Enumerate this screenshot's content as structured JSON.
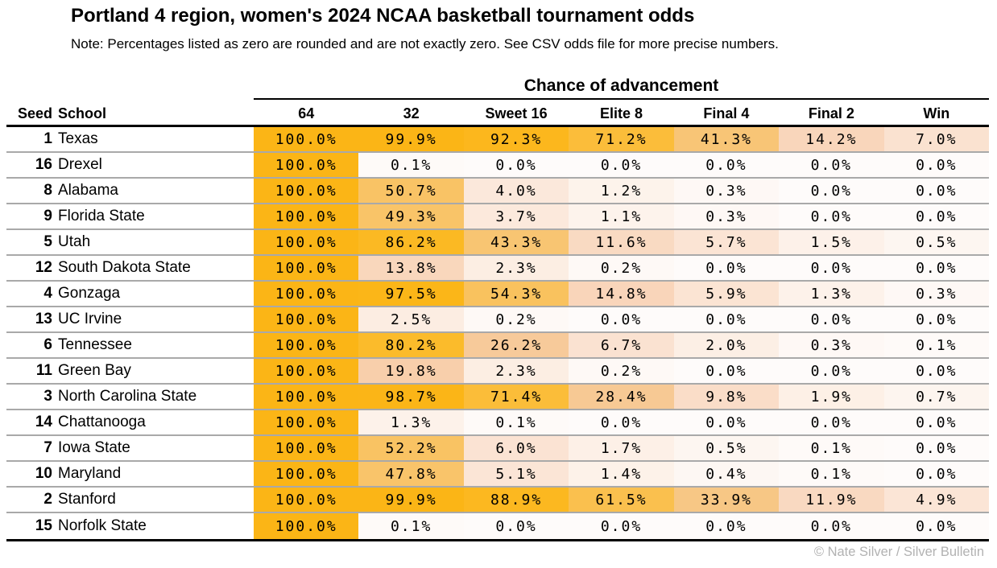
{
  "chart_data": {
    "type": "table",
    "title": "Portland 4 region, women's 2024 NCAA basketball tournament odds",
    "note": "Note: Percentages listed as zero are rounded and are not exactly zero. See CSV odds file for more precise numbers.",
    "group_header": "Chance of advancement",
    "seed_header": "Seed",
    "school_header": "School",
    "round_headers": [
      "64",
      "32",
      "Sweet 16",
      "Elite 8",
      "Final 4",
      "Final 2",
      "Win"
    ],
    "value_format": "percent_one_decimal",
    "rows": [
      {
        "seed": 1,
        "school": "Texas",
        "values": [
          100.0,
          99.9,
          92.3,
          71.2,
          41.3,
          14.2,
          7.0
        ]
      },
      {
        "seed": 16,
        "school": "Drexel",
        "values": [
          100.0,
          0.1,
          0.0,
          0.0,
          0.0,
          0.0,
          0.0
        ]
      },
      {
        "seed": 8,
        "school": "Alabama",
        "values": [
          100.0,
          50.7,
          4.0,
          1.2,
          0.3,
          0.0,
          0.0
        ]
      },
      {
        "seed": 9,
        "school": "Florida State",
        "values": [
          100.0,
          49.3,
          3.7,
          1.1,
          0.3,
          0.0,
          0.0
        ]
      },
      {
        "seed": 5,
        "school": "Utah",
        "values": [
          100.0,
          86.2,
          43.3,
          11.6,
          5.7,
          1.5,
          0.5
        ]
      },
      {
        "seed": 12,
        "school": "South Dakota State",
        "values": [
          100.0,
          13.8,
          2.3,
          0.2,
          0.0,
          0.0,
          0.0
        ]
      },
      {
        "seed": 4,
        "school": "Gonzaga",
        "values": [
          100.0,
          97.5,
          54.3,
          14.8,
          5.9,
          1.3,
          0.3
        ]
      },
      {
        "seed": 13,
        "school": "UC Irvine",
        "values": [
          100.0,
          2.5,
          0.2,
          0.0,
          0.0,
          0.0,
          0.0
        ]
      },
      {
        "seed": 6,
        "school": "Tennessee",
        "values": [
          100.0,
          80.2,
          26.2,
          6.7,
          2.0,
          0.3,
          0.1
        ]
      },
      {
        "seed": 11,
        "school": "Green Bay",
        "values": [
          100.0,
          19.8,
          2.3,
          0.2,
          0.0,
          0.0,
          0.0
        ]
      },
      {
        "seed": 3,
        "school": "North Carolina State",
        "values": [
          100.0,
          98.7,
          71.4,
          28.4,
          9.8,
          1.9,
          0.7
        ]
      },
      {
        "seed": 14,
        "school": "Chattanooga",
        "values": [
          100.0,
          1.3,
          0.1,
          0.0,
          0.0,
          0.0,
          0.0
        ]
      },
      {
        "seed": 7,
        "school": "Iowa State",
        "values": [
          100.0,
          52.2,
          6.0,
          1.7,
          0.5,
          0.1,
          0.0
        ]
      },
      {
        "seed": 10,
        "school": "Maryland",
        "values": [
          100.0,
          47.8,
          5.1,
          1.4,
          0.4,
          0.1,
          0.0
        ]
      },
      {
        "seed": 2,
        "school": "Stanford",
        "values": [
          100.0,
          99.9,
          88.9,
          61.5,
          33.9,
          11.9,
          4.9
        ]
      },
      {
        "seed": 15,
        "school": "Norfolk State",
        "values": [
          100.0,
          0.1,
          0.0,
          0.0,
          0.0,
          0.0,
          0.0
        ]
      }
    ],
    "color_scale": {
      "type": "linear",
      "stops": [
        {
          "t": 0.0,
          "color": "#FEFBFA"
        },
        {
          "t": 0.001,
          "color": "#FEFAF8"
        },
        {
          "t": 0.005,
          "color": "#FDF6F1"
        },
        {
          "t": 0.013,
          "color": "#FDF2EA"
        },
        {
          "t": 0.025,
          "color": "#FCEDE2"
        },
        {
          "t": 0.05,
          "color": "#FBE5D6"
        },
        {
          "t": 0.08,
          "color": "#FAE0CD"
        },
        {
          "t": 0.12,
          "color": "#F9D9C1"
        },
        {
          "t": 0.15,
          "color": "#F9D5B9"
        },
        {
          "t": 0.2,
          "color": "#F8CFAA"
        },
        {
          "t": 0.28,
          "color": "#F7C995"
        },
        {
          "t": 0.34,
          "color": "#F7C785"
        },
        {
          "t": 0.43,
          "color": "#F8C572"
        },
        {
          "t": 0.52,
          "color": "#F9C363"
        },
        {
          "t": 0.62,
          "color": "#FAC04D"
        },
        {
          "t": 0.72,
          "color": "#FBBD38"
        },
        {
          "t": 0.82,
          "color": "#FBBA28"
        },
        {
          "t": 0.93,
          "color": "#FCB71C"
        },
        {
          "t": 1.0,
          "color": "#FBB516"
        }
      ]
    },
    "line_colors": {
      "heavy_rule": "#000000",
      "row_rule": "#a9a9a9"
    },
    "credit": "© Nate Silver / Silver Bulletin",
    "credit_color": "#b2b2b2"
  }
}
